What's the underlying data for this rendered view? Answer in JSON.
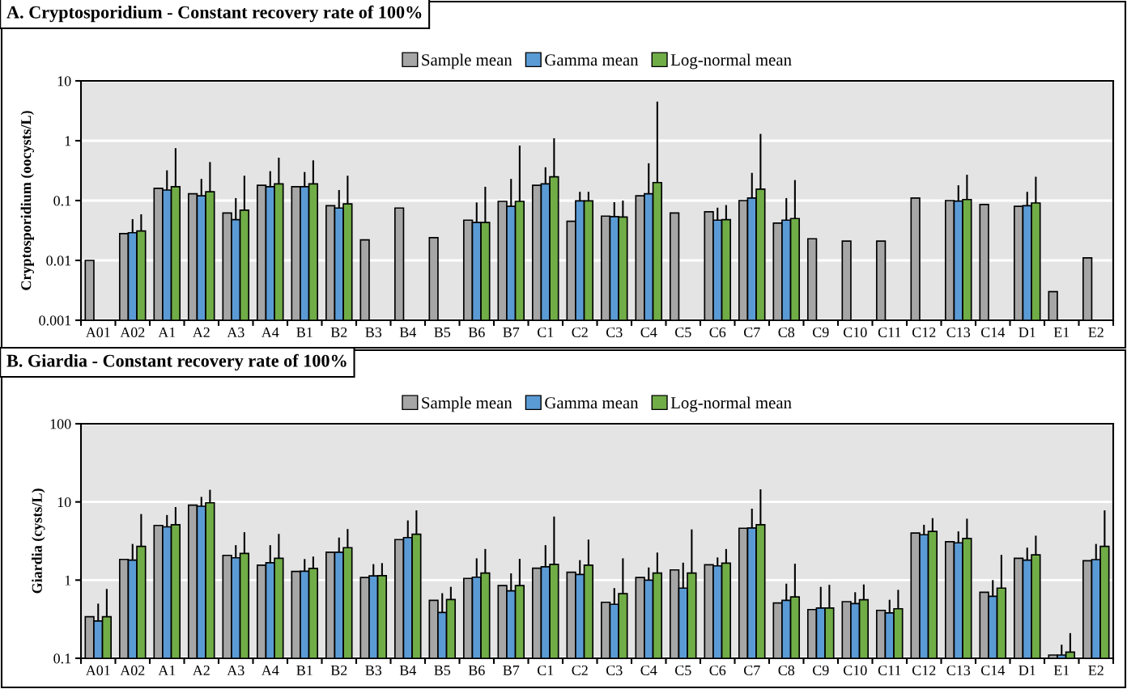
{
  "chart_data": [
    {
      "type": "bar",
      "title": "A. Cryptosporidium - Constant recovery rate of 100%",
      "ylabel": "Cryptosporidium (oocysts/L)",
      "log": true,
      "grid": "y",
      "legend": "top",
      "ylim": [
        0.001,
        10
      ],
      "yticks": [
        0.001,
        0.01,
        0.1,
        1,
        10
      ],
      "categories": [
        "A01",
        "A02",
        "A1",
        "A2",
        "A3",
        "A4",
        "B1",
        "B2",
        "B3",
        "B4",
        "B5",
        "B6",
        "B7",
        "C1",
        "C2",
        "C3",
        "C4",
        "C5",
        "C6",
        "C7",
        "C8",
        "C9",
        "C10",
        "C11",
        "C12",
        "C13",
        "C14",
        "D1",
        "E1",
        "E2"
      ],
      "series": [
        {
          "name": "Sample mean",
          "color": "#a6a6a6",
          "values": [
            0.01,
            0.028,
            0.16,
            0.13,
            0.062,
            0.18,
            0.17,
            0.082,
            0.022,
            0.075,
            0.024,
            0.047,
            0.097,
            0.18,
            0.045,
            0.055,
            0.12,
            0.062,
            0.065,
            0.1,
            0.042,
            0.023,
            0.021,
            0.021,
            0.11,
            0.1,
            0.086,
            0.08,
            0.003,
            0.011
          ]
        },
        {
          "name": "Gamma mean",
          "color": "#5b9bd5",
          "values": [
            null,
            0.029,
            0.15,
            0.12,
            0.048,
            0.17,
            0.17,
            0.075,
            null,
            null,
            null,
            0.043,
            0.08,
            0.19,
            0.099,
            0.054,
            0.13,
            null,
            0.047,
            0.11,
            0.047,
            null,
            null,
            null,
            null,
            0.098,
            null,
            0.082,
            null,
            null
          ],
          "errors": [
            null,
            [
              0.029,
              0.049
            ],
            [
              0.15,
              0.32
            ],
            [
              0.12,
              0.23
            ],
            [
              0.048,
              0.11
            ],
            [
              0.17,
              0.31
            ],
            [
              0.17,
              0.3
            ],
            [
              0.075,
              0.15
            ],
            null,
            null,
            null,
            [
              0.043,
              0.093
            ],
            [
              0.08,
              0.23
            ],
            [
              0.19,
              0.36
            ],
            [
              0.099,
              0.14
            ],
            [
              0.054,
              0.094
            ],
            [
              0.13,
              0.42
            ],
            null,
            [
              0.047,
              0.076
            ],
            [
              0.11,
              0.29
            ],
            [
              0.047,
              0.11
            ],
            null,
            null,
            null,
            null,
            [
              0.098,
              0.18
            ],
            null,
            [
              0.082,
              0.14
            ],
            null,
            null
          ]
        },
        {
          "name": "Log-normal mean",
          "color": "#70ad47",
          "values": [
            null,
            0.031,
            0.17,
            0.14,
            0.069,
            0.19,
            0.19,
            0.088,
            null,
            null,
            null,
            0.043,
            0.097,
            0.25,
            0.099,
            0.053,
            0.2,
            null,
            0.048,
            0.155,
            0.05,
            null,
            null,
            null,
            null,
            0.104,
            null,
            0.091,
            null,
            null
          ],
          "errors": [
            null,
            [
              0.031,
              0.059
            ],
            [
              0.17,
              0.75
            ],
            [
              0.14,
              0.44
            ],
            [
              0.069,
              0.26
            ],
            [
              0.19,
              0.52
            ],
            [
              0.19,
              0.47
            ],
            [
              0.088,
              0.26
            ],
            null,
            null,
            null,
            [
              0.043,
              0.17
            ],
            [
              0.097,
              0.83
            ],
            [
              0.25,
              1.1
            ],
            [
              0.099,
              0.14
            ],
            [
              0.053,
              0.1
            ],
            [
              0.2,
              4.5
            ],
            null,
            [
              0.048,
              0.084
            ],
            [
              0.155,
              1.3
            ],
            [
              0.05,
              0.22
            ],
            null,
            null,
            null,
            null,
            [
              0.104,
              0.27
            ],
            null,
            [
              0.091,
              0.25
            ],
            null,
            null
          ]
        }
      ]
    },
    {
      "type": "bar",
      "title": "B. Giardia - Constant recovery rate of 100%",
      "ylabel": "Giardia (cysts/L)",
      "log": true,
      "grid": "y",
      "legend": "top",
      "ylim": [
        0.1,
        100
      ],
      "yticks": [
        0.1,
        1,
        10,
        100
      ],
      "categories": [
        "A01",
        "A02",
        "A1",
        "A2",
        "A3",
        "A4",
        "B1",
        "B2",
        "B3",
        "B4",
        "B5",
        "B6",
        "B7",
        "C1",
        "C2",
        "C3",
        "C4",
        "C5",
        "C6",
        "C7",
        "C8",
        "C9",
        "C10",
        "C11",
        "C12",
        "C13",
        "C14",
        "D1",
        "E1",
        "E2"
      ],
      "series": [
        {
          "name": "Sample mean",
          "color": "#a6a6a6",
          "values": [
            0.34,
            1.84,
            5.0,
            9.1,
            2.07,
            1.55,
            1.29,
            2.27,
            1.08,
            3.3,
            0.55,
            1.05,
            0.85,
            1.42,
            1.26,
            0.52,
            1.08,
            1.35,
            1.57,
            4.6,
            0.51,
            0.42,
            0.53,
            0.41,
            4.0,
            3.1,
            0.7,
            1.9,
            0.11,
            1.77
          ]
        },
        {
          "name": "Gamma mean",
          "color": "#5b9bd5",
          "values": [
            0.3,
            1.8,
            4.8,
            8.8,
            1.93,
            1.67,
            1.3,
            2.27,
            1.13,
            3.5,
            0.385,
            1.09,
            0.73,
            1.48,
            1.18,
            0.49,
            1.0,
            0.79,
            1.52,
            4.65,
            0.55,
            0.44,
            0.5,
            0.38,
            3.8,
            3.0,
            0.62,
            1.8,
            0.11,
            1.83
          ],
          "errors": [
            [
              0.3,
              0.5
            ],
            [
              1.8,
              2.9
            ],
            [
              4.8,
              6.8
            ],
            [
              8.8,
              11.6
            ],
            [
              1.93,
              2.8
            ],
            [
              1.67,
              2.8
            ],
            [
              1.3,
              1.86
            ],
            [
              2.27,
              3.5
            ],
            [
              1.13,
              1.6
            ],
            [
              3.5,
              5.8
            ],
            [
              0.385,
              0.68
            ],
            [
              1.09,
              1.9
            ],
            [
              0.73,
              1.22
            ],
            [
              1.48,
              2.8
            ],
            [
              1.18,
              1.8
            ],
            [
              0.49,
              0.79
            ],
            [
              1.0,
              1.45
            ],
            [
              0.79,
              1.67
            ],
            [
              1.52,
              1.95
            ],
            [
              4.65,
              8.2
            ],
            [
              0.55,
              0.9
            ],
            [
              0.44,
              0.82
            ],
            [
              0.5,
              0.7
            ],
            [
              0.38,
              0.56
            ],
            [
              3.8,
              5.1
            ],
            [
              3.0,
              4.2
            ],
            [
              0.62,
              1.0
            ],
            [
              1.8,
              2.6
            ],
            [
              0.11,
              0.149
            ],
            [
              1.83,
              2.9
            ]
          ]
        },
        {
          "name": "Log-normal mean",
          "color": "#70ad47",
          "values": [
            0.34,
            2.7,
            5.1,
            9.75,
            2.19,
            1.9,
            1.41,
            2.6,
            1.14,
            3.86,
            0.565,
            1.23,
            0.85,
            1.59,
            1.55,
            0.67,
            1.23,
            1.23,
            1.65,
            5.1,
            0.61,
            0.44,
            0.56,
            0.43,
            4.2,
            3.4,
            0.79,
            2.1,
            0.12,
            2.7
          ],
          "errors": [
            [
              0.34,
              0.77
            ],
            [
              2.7,
              7.0
            ],
            [
              5.1,
              8.6
            ],
            [
              9.75,
              14.3
            ],
            [
              2.19,
              4.1
            ],
            [
              1.9,
              3.9
            ],
            [
              1.41,
              2.0
            ],
            [
              2.6,
              4.5
            ],
            [
              1.14,
              1.65
            ],
            [
              3.86,
              7.8
            ],
            [
              0.565,
              0.82
            ],
            [
              1.23,
              2.5
            ],
            [
              0.85,
              1.87
            ],
            [
              1.59,
              6.5
            ],
            [
              1.55,
              3.3
            ],
            [
              0.67,
              1.9
            ],
            [
              1.23,
              2.25
            ],
            [
              1.23,
              4.45
            ],
            [
              1.65,
              2.5
            ],
            [
              5.1,
              14.5
            ],
            [
              0.61,
              1.62
            ],
            [
              0.44,
              0.87
            ],
            [
              0.56,
              0.88
            ],
            [
              0.43,
              0.75
            ],
            [
              4.2,
              6.2
            ],
            [
              3.4,
              6.1
            ],
            [
              0.79,
              2.1
            ],
            [
              2.1,
              3.7
            ],
            [
              0.12,
              0.21
            ],
            [
              2.7,
              7.8
            ]
          ]
        }
      ]
    }
  ]
}
